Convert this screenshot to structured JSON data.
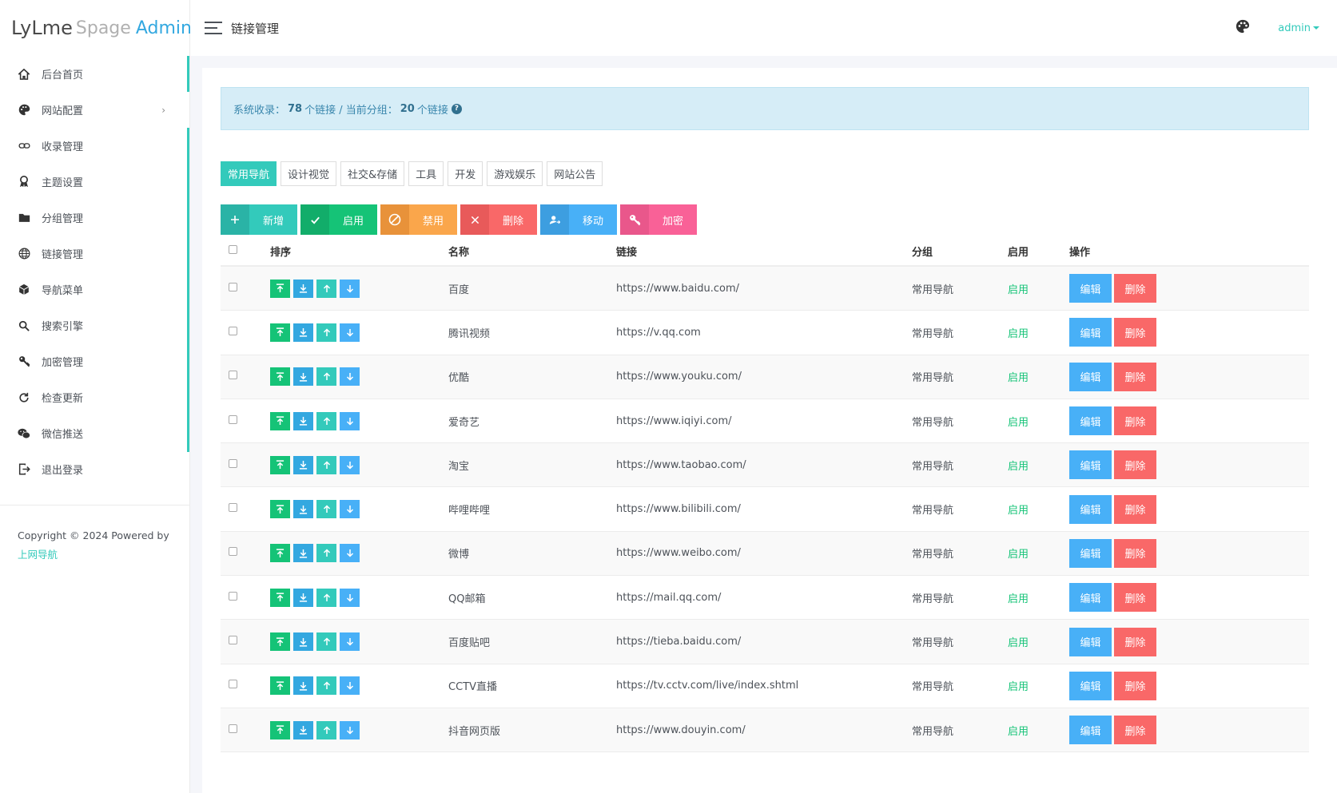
{
  "logo": {
    "part1": "LyLme",
    "part2": "Spage",
    "part3": "Admin"
  },
  "header": {
    "title": "链接管理",
    "user": "admin"
  },
  "sidebar": {
    "items": [
      {
        "label": "后台首页",
        "icon": "home-icon"
      },
      {
        "label": "网站配置",
        "icon": "palette-icon",
        "arrow": "›"
      },
      {
        "label": "收录管理",
        "icon": "link-icon"
      },
      {
        "label": "主题设置",
        "icon": "award-icon"
      },
      {
        "label": "分组管理",
        "icon": "folder-icon"
      },
      {
        "label": "链接管理",
        "icon": "globe-icon"
      },
      {
        "label": "导航菜单",
        "icon": "cube-icon"
      },
      {
        "label": "搜索引擎",
        "icon": "search-icon"
      },
      {
        "label": "加密管理",
        "icon": "key-icon"
      },
      {
        "label": "检查更新",
        "icon": "refresh-icon"
      },
      {
        "label": "微信推送",
        "icon": "wechat-icon"
      },
      {
        "label": "退出登录",
        "icon": "logout-icon"
      }
    ],
    "copyright_text": "Copyright © 2024 Powered by",
    "copyright_link": "上网导航"
  },
  "stats": {
    "label1": "系统收录：",
    "count1": "78",
    "label2": "个链接 / 当前分组：",
    "count2": "20",
    "label3": "个链接"
  },
  "tabs": [
    "常用导航",
    "设计视觉",
    "社交&存储",
    "工具",
    "开发",
    "游戏娱乐",
    "网站公告"
  ],
  "actions": [
    {
      "label": "新增",
      "icon": "plus-icon",
      "color_icon": "#2ab3a6",
      "color_label": "#33cabb"
    },
    {
      "label": "启用",
      "icon": "check-icon",
      "color_icon": "#12ad6a",
      "color_label": "#15c377"
    },
    {
      "label": "禁用",
      "icon": "ban-icon",
      "color_icon": "#e8923a",
      "color_label": "#faa64b"
    },
    {
      "label": "删除",
      "icon": "close-icon",
      "color_icon": "#e85a5a",
      "color_label": "#f96868"
    },
    {
      "label": "移动",
      "icon": "user-move-icon",
      "color_icon": "#3d9ee0",
      "color_label": "#48b0f7"
    },
    {
      "label": "加密",
      "icon": "key-icon",
      "color_icon": "#e9578b",
      "color_label": "#f96197"
    }
  ],
  "table": {
    "headers": {
      "sort": "排序",
      "name": "名称",
      "link": "链接",
      "group": "分组",
      "enabled": "启用",
      "ops": "操作"
    },
    "edit_label": "编辑",
    "delete_label": "删除",
    "rows": [
      {
        "name": "百度",
        "link": "https://www.baidu.com/",
        "group": "常用导航",
        "status": "启用"
      },
      {
        "name": "腾讯视频",
        "link": "https://v.qq.com",
        "group": "常用导航",
        "status": "启用"
      },
      {
        "name": "优酷",
        "link": "https://www.youku.com/",
        "group": "常用导航",
        "status": "启用"
      },
      {
        "name": "爱奇艺",
        "link": "https://www.iqiyi.com/",
        "group": "常用导航",
        "status": "启用"
      },
      {
        "name": "淘宝",
        "link": "https://www.taobao.com/",
        "group": "常用导航",
        "status": "启用"
      },
      {
        "name": "哔哩哔哩",
        "link": "https://www.bilibili.com/",
        "group": "常用导航",
        "status": "启用"
      },
      {
        "name": "微博",
        "link": "https://www.weibo.com/",
        "group": "常用导航",
        "status": "启用"
      },
      {
        "name": "QQ邮箱",
        "link": "https://mail.qq.com/",
        "group": "常用导航",
        "status": "启用"
      },
      {
        "name": "百度贴吧",
        "link": "https://tieba.baidu.com/",
        "group": "常用导航",
        "status": "启用"
      },
      {
        "name": "CCTV直播",
        "link": "https://tv.cctv.com/live/index.shtml",
        "group": "常用导航",
        "status": "启用"
      },
      {
        "name": "抖音网页版",
        "link": "https://www.douyin.com/",
        "group": "常用导航",
        "status": "启用"
      }
    ]
  }
}
